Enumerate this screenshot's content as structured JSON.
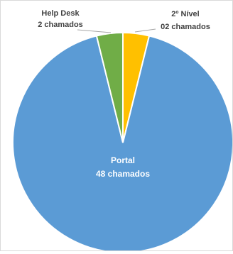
{
  "chart_data": {
    "type": "pie",
    "title": "",
    "slices": [
      {
        "label": "2º Nível",
        "value_label": "02 chamados",
        "value": 2,
        "color": "#FFC000"
      },
      {
        "label": "Portal",
        "value_label": "48 chamados",
        "value": 48,
        "color": "#5B9BD5"
      },
      {
        "label": "Help Desk",
        "value_label": "2 chamados",
        "value": 2,
        "color": "#70AD47"
      }
    ],
    "start_angle_deg": 0,
    "direction": "clockwise",
    "legend": "none"
  }
}
